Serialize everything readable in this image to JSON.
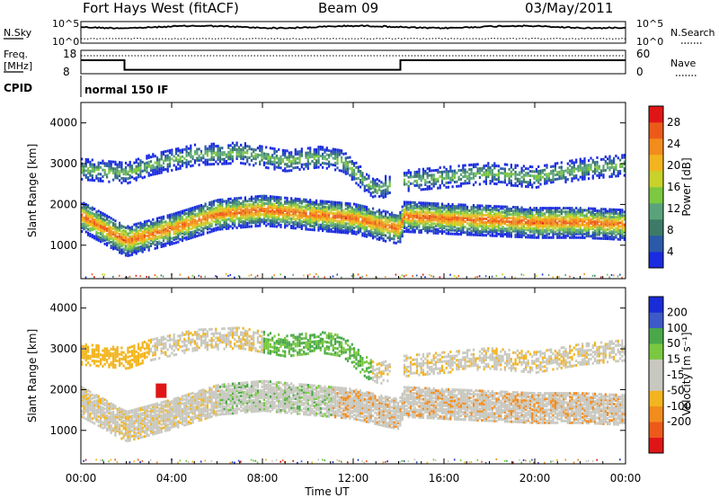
{
  "header": {
    "station": "Fort Hays West (fitACF)",
    "beam": "Beam 09",
    "date": "03/May/2011"
  },
  "noise_panel": {
    "left_label": "N.Sky",
    "right_label": "N.Search",
    "left_ticks": [
      "10^5",
      "10^0"
    ],
    "right_ticks": [
      "10^5",
      "10^0"
    ]
  },
  "freq_panel": {
    "left_label_1": "Freq.",
    "left_label_2": "[MHz]",
    "right_label": "Nave",
    "left_ticks": [
      "18",
      "8"
    ],
    "right_ticks": [
      "60",
      "0"
    ],
    "freq_steps": [
      [
        0,
        15.5
      ],
      [
        1.92,
        15.5
      ],
      [
        1.92,
        10.2
      ],
      [
        14.08,
        10.2
      ],
      [
        14.08,
        15.5
      ],
      [
        24,
        15.5
      ]
    ]
  },
  "cpid": {
    "label": "CPID",
    "value": "normal 150 IF"
  },
  "power_panel": {
    "ylabel": "Slant Range [km]",
    "yticks": [
      "4000",
      "3000",
      "2000",
      "1000"
    ],
    "colorbar_label": "Power [dB]",
    "colorbar_ticks": [
      "28",
      "24",
      "20",
      "16",
      "12",
      "8",
      "4"
    ],
    "colors": [
      "#1a2be0",
      "#2b5aa8",
      "#3d7b68",
      "#5aa37a",
      "#7cc840",
      "#c8d22a",
      "#f2b51f",
      "#f28c1c",
      "#ec5a1a",
      "#e01616"
    ]
  },
  "velocity_panel": {
    "ylabel": "Slant Range [km]",
    "yticks": [
      "4000",
      "3000",
      "2000",
      "1000"
    ],
    "colorbar_label": "Velocity [m s⁻¹]",
    "colorbar_ticks": [
      "200",
      "100",
      "50",
      "15",
      "-15",
      "-50",
      "-100",
      "-200"
    ],
    "colors": [
      "#1a2bd8",
      "#3d5ac8",
      "#4aa84a",
      "#7ac840",
      "#c8c8c0",
      "#c8c8c0",
      "#f2b51f",
      "#f28c1c",
      "#ec5a1a",
      "#e01616"
    ]
  },
  "xaxis": {
    "xlabel": "Time UT",
    "ticks": [
      "00:00",
      "04:00",
      "08:00",
      "12:00",
      "16:00",
      "20:00",
      "00:00"
    ]
  },
  "chart_data": {
    "type": "heatmap",
    "title": "Fort Hays West (fitACF)  Beam 09  03/May/2011",
    "xlabel": "Time UT",
    "ylabel": "Slant Range [km]",
    "xlim_hours": [
      0,
      24
    ],
    "ylim_km": [
      180,
      4500
    ],
    "grid": false,
    "colorbar_power": {
      "label": "Power [dB]",
      "range": [
        0,
        30
      ]
    },
    "colorbar_velocity": {
      "label": "Velocity [m s⁻¹]",
      "range": [
        -200,
        200
      ]
    },
    "bands_hours_vs_range_km": {
      "lower_band_center_km": [
        [
          0,
          1750
        ],
        [
          1,
          1450
        ],
        [
          1.6,
          1250
        ],
        [
          2,
          1150
        ],
        [
          4,
          1450
        ],
        [
          6,
          1800
        ],
        [
          8,
          1900
        ],
        [
          10,
          1800
        ],
        [
          12,
          1700
        ],
        [
          13.5,
          1500
        ],
        [
          14,
          1450
        ],
        [
          14.2,
          1750
        ],
        [
          16,
          1700
        ],
        [
          18,
          1650
        ],
        [
          20,
          1600
        ],
        [
          22,
          1600
        ],
        [
          24,
          1550
        ]
      ],
      "upper_band_center_km": [
        [
          0,
          2900
        ],
        [
          1,
          2850
        ],
        [
          2,
          2800
        ],
        [
          3,
          3000
        ],
        [
          5,
          3250
        ],
        [
          7,
          3300
        ],
        [
          9,
          3100
        ],
        [
          10.5,
          3200
        ],
        [
          11.5,
          3100
        ],
        [
          12.5,
          2600
        ],
        [
          13,
          2400
        ],
        [
          14,
          2600
        ],
        [
          16,
          2700
        ],
        [
          18,
          2800
        ],
        [
          20,
          2700
        ],
        [
          22,
          2900
        ],
        [
          24,
          3000
        ]
      ]
    },
    "power_colorbar_ticks": [
      28,
      24,
      20,
      16,
      12,
      8,
      4
    ],
    "velocity_colorbar_ticks": [
      200,
      100,
      50,
      15,
      -15,
      -50,
      -100,
      -200
    ]
  }
}
